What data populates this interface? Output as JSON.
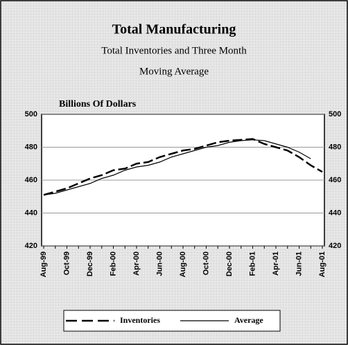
{
  "chart_data": {
    "type": "line",
    "title": "Total Manufacturing",
    "subtitle": [
      "Total Inventories and Three Month",
      "Moving Average"
    ],
    "y_label": "Billions Of Dollars",
    "categories": [
      "Aug-99",
      null,
      "Oct-99",
      null,
      "Dec-99",
      null,
      "Feb-00",
      null,
      "Apr-00",
      null,
      "Jun-00",
      null,
      "Aug-00",
      null,
      "Oct-00",
      null,
      "Dec-00",
      null,
      "Feb-01",
      null,
      "Apr-01",
      null,
      "Jun-01",
      null,
      "Aug-01"
    ],
    "series": [
      {
        "name": "Inventories",
        "color": "#000000",
        "style": "dashed",
        "values": [
          451,
          453,
          455,
          458,
          461,
          463,
          466,
          467,
          470,
          471,
          474,
          476,
          478,
          479,
          481,
          483,
          484,
          484.5,
          485,
          482,
          480,
          478,
          474,
          469,
          465
        ]
      },
      {
        "name": "Average",
        "color": "#000000",
        "style": "solid",
        "values": [
          451,
          452,
          454,
          456,
          458,
          461,
          463,
          466,
          468,
          469,
          471,
          474,
          476,
          478,
          480,
          481,
          483,
          484,
          484.5,
          484,
          482,
          480,
          477,
          473,
          null
        ]
      }
    ],
    "ylim": [
      420,
      500
    ],
    "yticks": [
      420,
      440,
      460,
      480,
      500
    ],
    "grid": true,
    "legend": "bottom"
  }
}
